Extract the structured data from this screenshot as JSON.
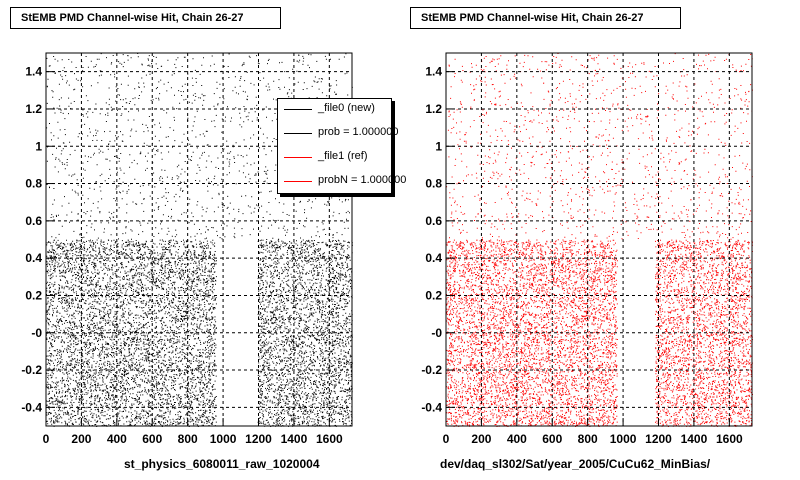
{
  "chart_data": [
    {
      "type": "scatter",
      "title": "StEMB PMD Channel-wise Hit, Chain 26-27",
      "xlabel": "st_physics_6080011_raw_1020004",
      "ylabel": "",
      "xlim": [
        0,
        1728
      ],
      "ylim": [
        -0.5,
        1.5
      ],
      "x_ticks": [
        0,
        200,
        400,
        600,
        800,
        1000,
        1200,
        1400,
        1600
      ],
      "y_ticks": [
        -0.4,
        -0.2,
        0,
        0.2,
        0.4,
        0.6,
        0.8,
        1,
        1.2,
        1.4
      ],
      "y_tick_labels": [
        "-0.4",
        "-0.2",
        "-0",
        "0.2",
        "0.4",
        "0.6",
        "0.8",
        "1",
        "1.2",
        "1.4"
      ],
      "grid": true,
      "color": "#000000",
      "dense_band_y": [
        -0.5,
        0.5
      ],
      "channel_ranges_with_hits": [
        [
          0,
          960
        ],
        [
          1195,
          1728
        ]
      ],
      "legend_position": "top-right",
      "legend": [
        {
          "label": "_file0 (new)",
          "color": "#000000"
        },
        {
          "label": "prob = 1.000000",
          "color": "#000000"
        },
        {
          "label": "_file1 (ref)",
          "color": "#ff0000"
        },
        {
          "label": "probN = 1.000000",
          "color": "#ff0000"
        }
      ]
    },
    {
      "type": "scatter",
      "title": "StEMB PMD Channel-wise Hit, Chain 26-27",
      "xlabel": "dev/daq_sl302/Sat/year_2005/CuCu62_MinBias/",
      "ylabel": "",
      "xlim": [
        0,
        1728
      ],
      "ylim": [
        -0.5,
        1.5
      ],
      "x_ticks": [
        0,
        200,
        400,
        600,
        800,
        1000,
        1200,
        1400,
        1600
      ],
      "y_ticks": [
        -0.4,
        -0.2,
        0,
        0.2,
        0.4,
        0.6,
        0.8,
        1,
        1.2,
        1.4
      ],
      "y_tick_labels": [
        "-0.4",
        "-0.2",
        "-0",
        "0.2",
        "0.4",
        "0.6",
        "0.8",
        "1",
        "1.2",
        "1.4"
      ],
      "grid": true,
      "color": "#ff0000",
      "dense_band_y": [
        -0.5,
        0.5
      ],
      "channel_ranges_with_hits": [
        [
          0,
          965
        ],
        [
          1180,
          1728
        ]
      ]
    }
  ]
}
